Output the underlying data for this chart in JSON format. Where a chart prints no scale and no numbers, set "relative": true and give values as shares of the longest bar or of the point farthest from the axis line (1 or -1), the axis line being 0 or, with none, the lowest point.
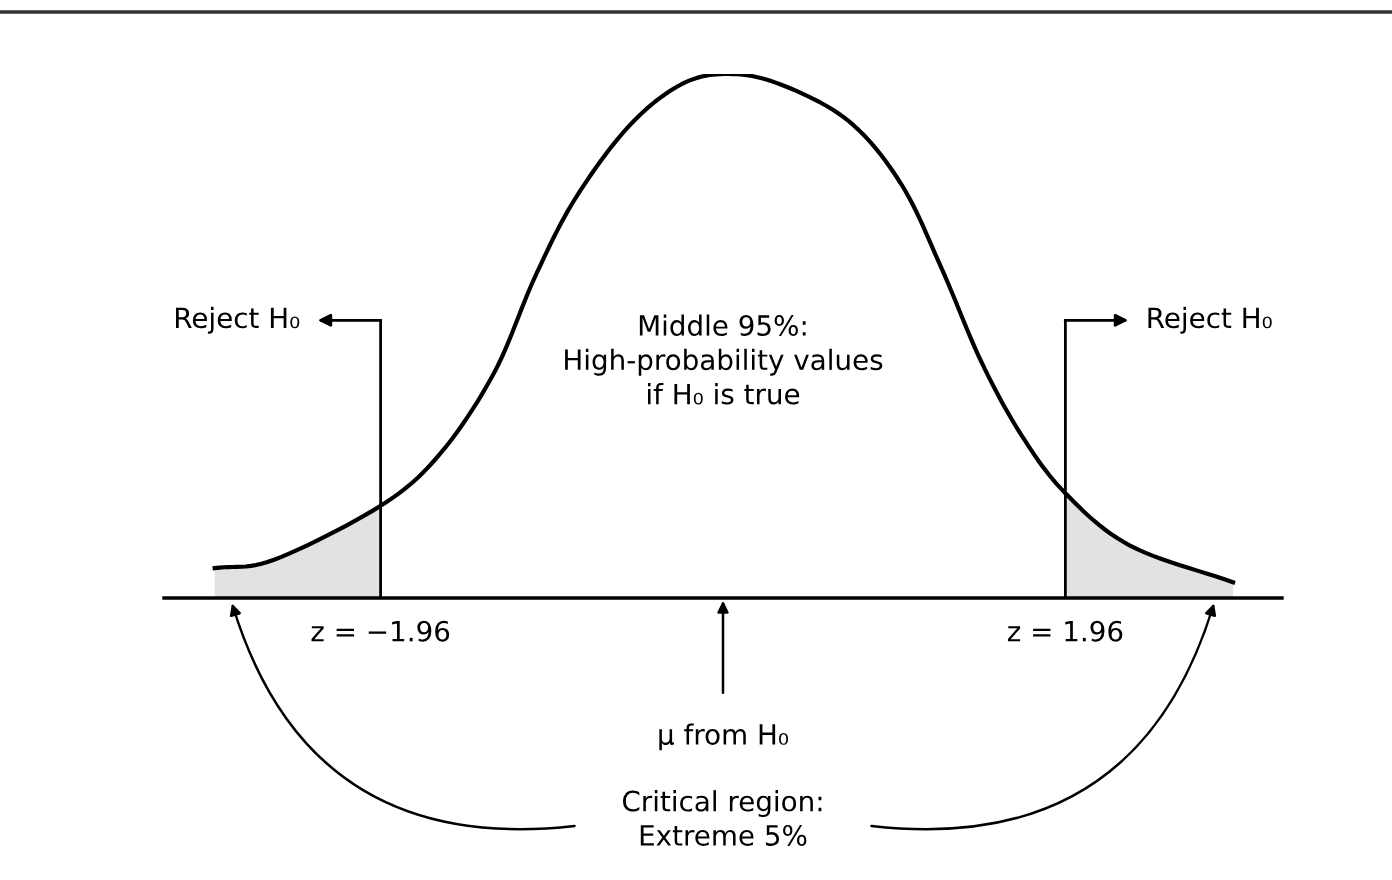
{
  "chart_data": {
    "type": "line",
    "relative": true,
    "xlim": [
      -3.2,
      3.2
    ],
    "xticks": [
      {
        "value": -1.96,
        "label": "z = −1.96"
      },
      {
        "value": 1.96,
        "label": "z = 1.96"
      }
    ],
    "series": [
      {
        "type": "area",
        "color": "#e2e2e2",
        "x": [
          -2.91,
          -2.57,
          -1.96
        ],
        "values": [
          0.057,
          0.073,
          0.176
        ]
      },
      {
        "type": "area",
        "color": "#e2e2e2",
        "x": [
          1.96,
          2.33,
          2.92
        ],
        "values": [
          0.2,
          0.1,
          0.03
        ]
      },
      {
        "color": "#000000",
        "x": [
          -2.91,
          -2.57,
          -1.96,
          -1.62,
          -1.31,
          -1.08,
          -0.85,
          -0.54,
          -0.24,
          0.03,
          0.33,
          0.72,
          1.02,
          1.25,
          1.48,
          1.71,
          1.96,
          2.33,
          2.92
        ],
        "values": [
          0.057,
          0.073,
          0.176,
          0.275,
          0.43,
          0.61,
          0.76,
          0.9,
          0.98,
          1.0,
          0.98,
          0.91,
          0.79,
          0.63,
          0.45,
          0.31,
          0.2,
          0.1,
          0.03
        ]
      }
    ],
    "ref_lines": [
      {
        "axis": "x",
        "value": -1.96,
        "label": "Reject H₀",
        "color": "#000000"
      },
      {
        "axis": "x",
        "value": 1.96,
        "label": "Reject H₀",
        "color": "#000000"
      }
    ],
    "annotations": [
      "Middle 95%:\nHigh-probability values\nif H₀ is true",
      "μ from H₀",
      "Critical region:\nExtreme 5%"
    ],
    "grid": false,
    "legend": false,
    "marker": "none",
    "line_style": "solid"
  }
}
